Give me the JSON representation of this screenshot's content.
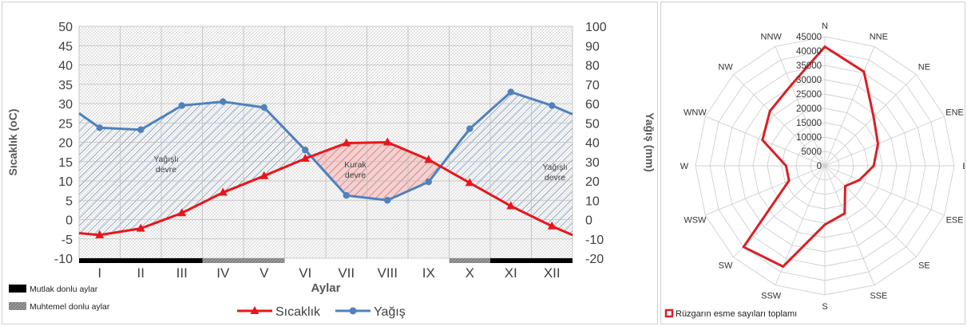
{
  "chart_data": [
    {
      "type": "line",
      "xlabel": "Aylar",
      "ylabel_left": "Sıcaklık (oC)",
      "ylabel_right": "Yağış (mm)",
      "categories": [
        "I",
        "II",
        "III",
        "IV",
        "V",
        "VI",
        "VII",
        "VIII",
        "IX",
        "X",
        "XI",
        "XII"
      ],
      "ylim_left": [
        -10,
        50
      ],
      "ylim_right": [
        -20,
        100
      ],
      "yticks_left": [
        "-10",
        "-5",
        "0",
        "5",
        "10",
        "15",
        "20",
        "25",
        "30",
        "35",
        "40",
        "45",
        "50"
      ],
      "yticks_right": [
        "-20",
        "-10",
        "0",
        "10",
        "20",
        "30",
        "40",
        "50",
        "60",
        "70",
        "80",
        "90",
        "100"
      ],
      "grid": true,
      "series": [
        {
          "name": "Sıcaklık",
          "axis": "left",
          "color": "#e8161c",
          "start": -3.5,
          "end": -4,
          "values": [
            -4,
            -2.3,
            1.7,
            7,
            11.3,
            15.8,
            19.8,
            20,
            15.5,
            9.5,
            3.5,
            -1.7
          ]
        },
        {
          "name": "Yağış",
          "axis": "right",
          "color": "#4f81bd",
          "start": 55,
          "end": 54.5,
          "values": [
            47.5,
            46.5,
            59,
            61,
            58,
            36,
            12.5,
            10,
            19.5,
            47,
            66,
            59
          ]
        }
      ],
      "annotations": [
        {
          "text": "Yağışlı devre",
          "lines": [
            "Yağışlı",
            "devre"
          ]
        },
        {
          "text": "Kurak devre",
          "lines": [
            "Kurak",
            "devre"
          ]
        },
        {
          "text": "Yağışlı devre",
          "lines": [
            "Yağışlı",
            "devre"
          ]
        }
      ],
      "frost_bar": [
        "mutlak",
        "mutlak",
        "mutlak",
        "muhtemel",
        "muhtemel",
        "none",
        "none",
        "none",
        "none",
        "muhtemel",
        "mutlak",
        "mutlak"
      ],
      "frost_legend": [
        {
          "label": "Mutlak donlu aylar",
          "color": "#000000"
        },
        {
          "label": "Muhtemel donlu aylar",
          "color": "#8c8c8c"
        }
      ],
      "legend": [
        "Sıcaklık",
        "Yağış"
      ],
      "legend_position": "bottom-center"
    },
    {
      "type": "radar",
      "directions": [
        "N",
        "NNE",
        "NE",
        "ENE",
        "E",
        "ESE",
        "SE",
        "SSE",
        "S",
        "SSW",
        "SW",
        "WSW",
        "W",
        "WNW",
        "NW",
        "NNW"
      ],
      "values": [
        41500,
        35500,
        24000,
        20000,
        17000,
        13000,
        10000,
        18000,
        20500,
        38000,
        40000,
        13500,
        13500,
        23500,
        27000,
        30500
      ],
      "rlim": [
        0,
        45000
      ],
      "rticks": [
        "0",
        "5000",
        "10000",
        "15000",
        "20000",
        "25000",
        "30000",
        "35000",
        "40000",
        "45000"
      ],
      "color": "#d91f26",
      "legend": "Rüzgarın esme sayıları toplamı",
      "legend_position": "bottom-left"
    }
  ]
}
